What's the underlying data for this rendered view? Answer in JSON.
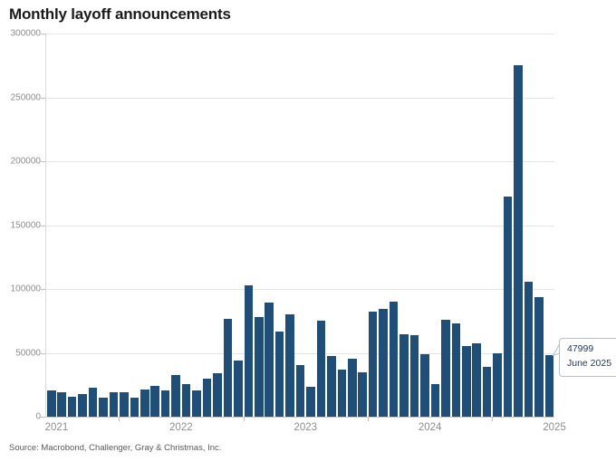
{
  "title": "Monthly layoff announcements",
  "source": "Source: Macrobond, Challenger, Gray & Christmas, Inc.",
  "callout": {
    "value": "47999",
    "label": "June 2025"
  },
  "colors": {
    "bar": "#1f4e79",
    "grid": "#e4e4e4",
    "axis_text": "#8c8c8c",
    "title_text": "#1a1a1a",
    "source_text": "#595959",
    "callout_border": "#b3bfd2",
    "callout_text": "#1f3864"
  },
  "chart_data": {
    "type": "bar",
    "title": "Monthly layoff announcements",
    "xlabel": "",
    "ylabel": "",
    "ylim": [
      0,
      300000
    ],
    "yticks": [
      0,
      50000,
      100000,
      150000,
      200000,
      250000,
      300000
    ],
    "ytick_labels": [
      "0",
      "50000",
      "100000",
      "150000",
      "200000",
      "250000",
      "300000"
    ],
    "year_labels": [
      "2021",
      "2022",
      "2023",
      "2024",
      "2025"
    ],
    "grid": true,
    "legend": false,
    "x": [
      "2021-06",
      "2021-07",
      "2021-08",
      "2021-09",
      "2021-10",
      "2021-11",
      "2021-12",
      "2022-01",
      "2022-02",
      "2022-03",
      "2022-04",
      "2022-05",
      "2022-06",
      "2022-07",
      "2022-08",
      "2022-09",
      "2022-10",
      "2022-11",
      "2022-12",
      "2023-01",
      "2023-02",
      "2023-03",
      "2023-04",
      "2023-05",
      "2023-06",
      "2023-07",
      "2023-08",
      "2023-09",
      "2023-10",
      "2023-11",
      "2023-12",
      "2024-01",
      "2024-02",
      "2024-03",
      "2024-04",
      "2024-05",
      "2024-06",
      "2024-07",
      "2024-08",
      "2024-09",
      "2024-10",
      "2024-11",
      "2024-12",
      "2025-01",
      "2025-02",
      "2025-03",
      "2025-04",
      "2025-05",
      "2025-06"
    ],
    "values": [
      20476,
      18942,
      15723,
      17895,
      22822,
      14875,
      19052,
      19064,
      15245,
      21387,
      24286,
      20712,
      32517,
      25810,
      20485,
      29989,
      33843,
      76835,
      43651,
      102943,
      77770,
      89703,
      66995,
      80089,
      40709,
      23697,
      75151,
      47457,
      36836,
      45510,
      34817,
      82307,
      84638,
      90309,
      64789,
      63816,
      48786,
      25885,
      75891,
      72821,
      55597,
      57727,
      38792,
      49795,
      172017,
      275240,
      105441,
      93816,
      47999
    ],
    "annotation": {
      "text": "47999 June 2025",
      "target_x": "2025-06",
      "target_value": 47999,
      "position": "right"
    }
  }
}
